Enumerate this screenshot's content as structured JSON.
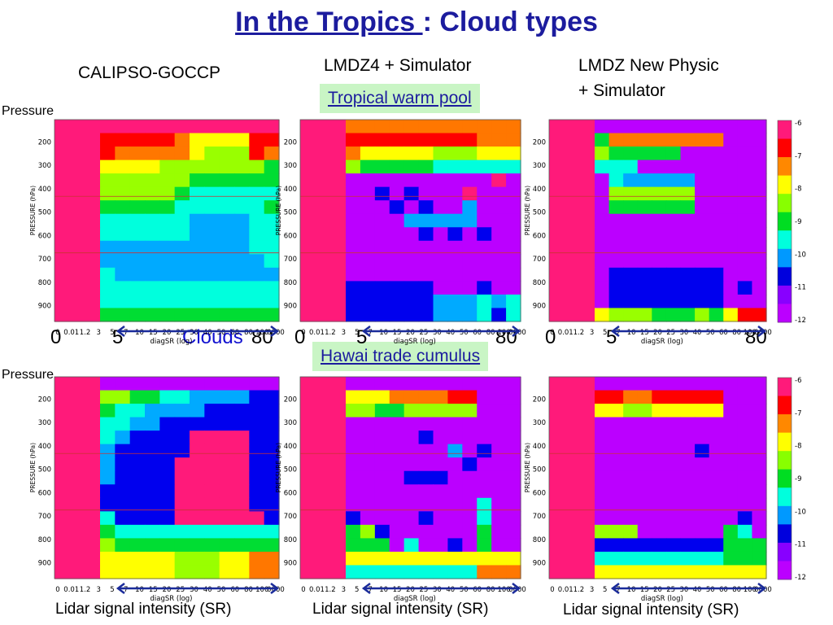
{
  "slide": {
    "title_part1": "In the Tropics ",
    "title_part2": ": Cloud types",
    "col_titles": [
      "CALIPSO-GOCCP",
      "LMDZ4 + Simulator",
      "LMDZ New Physic",
      "+ Simulator"
    ],
    "region_labels": [
      "Tropical warm pool",
      "Hawai trade cumulus"
    ],
    "pressure_label": "Pressure",
    "clouds_label": "Clouds",
    "bottom_labels": [
      "Lidar signal intensity (SR)",
      "Lidar signal intensity (SR)",
      "Lidar signal intensity (SR)"
    ],
    "big_ticks": [
      "0",
      "5",
      "80"
    ]
  },
  "chart_data": {
    "type": "heatmap",
    "ylabel": "PRESSURE (hPa)",
    "xlabel": "diagSR (log)",
    "x_tick_labels": [
      "0",
      "0.01",
      "1.2",
      "3",
      "5",
      "7",
      "10",
      "15",
      "20",
      "25",
      "30",
      "40",
      "50",
      "60",
      "80",
      "100",
      "0000"
    ],
    "y_tick_labels": [
      "200",
      "300",
      "400",
      "500",
      "600",
      "700",
      "800",
      "900"
    ],
    "colorbar_labels": [
      "-6",
      "-7",
      "-8",
      "-9",
      "-10",
      "-11",
      "-12"
    ],
    "colorbar_colors": [
      "#ff1a7a",
      "#ff0000",
      "#ff8800",
      "#ffff00",
      "#88ff00",
      "#00dd22",
      "#00ffdd",
      "#0099ff",
      "#0000dd",
      "#8800ff",
      "#bb00ff"
    ],
    "panels": [
      {
        "column": "CALIPSO-GOCCP",
        "region": "Tropical warm pool",
        "rows": [
          "9999999999999",
          "9111112333311",
          "9122222344412",
          "9333344444445",
          "9444444555555",
          "9444445666666",
          "9555556666665",
          "9666666777766",
          "9666666777766",
          "9777777777766",
          "9777777777776",
          "9677777777777",
          "9666666666666",
          "9666666666666",
          "9555555555555"
        ]
      },
      {
        "column": "LMDZ4 + Simulator",
        "region": "Tropical warm pool",
        "rows": [
          "9222222222222",
          "9111111111222",
          "9233333444333",
          "9455555666666",
          "9AAAAAAAAAA9A",
          "9AA8A8AAA9AAA",
          "9AAA8A8AA7AAA",
          "9AAAA77777AAA",
          "9AAAAA8A8A8AA",
          "9AAAAAAAAAAAA",
          "9AAAAAAAAAAAA",
          "9AAAAAAAAAAAA",
          "9888888AAA8AA",
          "9888888777676",
          "9888888777686"
        ]
      },
      {
        "column": "LMDZ New Physic + Simulator",
        "region": "Tropical warm pool",
        "rows": [
          "9AAAAAAAAAAAA",
          "9522222222AAA",
          "9455555AAAAAA",
          "9666AAAAAAAAA",
          "9A677777AAAAA",
          "9A444444AAAAA",
          "9A555555AAAAA",
          "9AAAAAAAAAAAA",
          "9AAAAAAAAAAAA",
          "9AAAAAAAAAAAA",
          "9AAAAAAAAAAAA",
          "9A88888888AAA",
          "9A88888888A8A",
          "9A88888888AAA",
          "9344455545311"
        ]
      },
      {
        "column": "CALIPSO-GOCCP",
        "region": "Hawai trade cumulus",
        "rows": [
          "9AAAAAAAAAAAA",
          "9445566777788",
          "9566777788888",
          "9667788888888",
          "9678888999988",
          "9788888999988",
          "9788889999988",
          "9788889999988",
          "9888889999988",
          "9888889999988",
          "9688889999998",
          "9566666666666",
          "9455555555555",
          "9333334443322",
          "9333334443322"
        ]
      },
      {
        "column": "LMDZ4 + Simulator",
        "region": "Hawai trade cumulus",
        "rows": [
          "9AAAAAAAAAAAA",
          "9333222211AAA",
          "9445544444AAA",
          "9AAAAAAAAAAAA",
          "9AAAAA8AAAAAA",
          "9AAAAAAA7A8AA",
          "9AAAAAAAA8AAA",
          "9AAAA888AAAAA",
          "9AAAAAAAAAAAA",
          "9AAAAAAAAA6AA",
          "98AAAA8AAA6AA",
          "9548AAAAAA5AA",
          "9555A6AA8A5AA",
          "9333333333333",
          "9666666666222"
        ]
      },
      {
        "column": "LMDZ New Physic + Simulator",
        "region": "Hawai trade cumulus",
        "rows": [
          "9AAAAAAAAAAAA",
          "9112211111AAA",
          "9334433333AAA",
          "9AAAAAAAAAAAA",
          "9AAAAAAAAAAAA",
          "9AAAAAAA8AAAA",
          "9AAAAAAAAAAAA",
          "9AAAAAAAAAAAA",
          "9AAAAAAAAAAAA",
          "9AAAAAAAAAAAA",
          "9AAAAAAAAAA8A",
          "9444AAAAAA56A",
          "9888888888555",
          "9666666666555",
          "9333333333333"
        ]
      }
    ]
  }
}
